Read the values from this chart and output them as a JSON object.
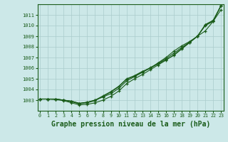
{
  "bg_color": "#cce8e8",
  "grid_color": "#aacccc",
  "line_color": "#1a5c1a",
  "xlabel": "Graphe pression niveau de la mer (hPa)",
  "xlabel_fontsize": 7.0,
  "xticks": [
    0,
    1,
    2,
    3,
    4,
    5,
    6,
    7,
    8,
    9,
    10,
    11,
    12,
    13,
    14,
    15,
    16,
    17,
    18,
    19,
    20,
    21,
    22,
    23
  ],
  "yticks": [
    1003,
    1004,
    1005,
    1006,
    1007,
    1008,
    1009,
    1010,
    1011
  ],
  "ylim": [
    1002.0,
    1012.0
  ],
  "xlim": [
    -0.3,
    23.3
  ],
  "series": [
    [
      1003.1,
      1003.1,
      1003.1,
      1003.0,
      1002.9,
      1002.7,
      1002.8,
      1003.0,
      1003.3,
      1003.6,
      1004.1,
      1004.8,
      1005.2,
      1005.6,
      1006.0,
      1006.4,
      1006.8,
      1007.2,
      1007.8,
      1008.4,
      1009.0,
      1009.5,
      1010.4,
      1011.5
    ],
    [
      1003.1,
      1003.1,
      1003.1,
      1003.0,
      1002.9,
      1002.7,
      1002.8,
      1003.0,
      1003.4,
      1003.8,
      1004.3,
      1005.0,
      1005.3,
      1005.7,
      1006.0,
      1006.5,
      1007.0,
      1007.6,
      1008.1,
      1008.5,
      1009.0,
      1010.1,
      1010.5,
      1011.9
    ],
    [
      1003.1,
      1003.1,
      1003.1,
      1003.0,
      1002.85,
      1002.65,
      1002.75,
      1002.95,
      1003.35,
      1003.75,
      1004.25,
      1004.95,
      1005.25,
      1005.65,
      1006.05,
      1006.45,
      1006.9,
      1007.4,
      1007.95,
      1008.45,
      1009.0,
      1010.05,
      1010.45,
      1011.85
    ],
    [
      1003.1,
      1003.1,
      1003.05,
      1002.95,
      1002.75,
      1002.55,
      1002.6,
      1002.75,
      1003.0,
      1003.35,
      1003.85,
      1004.55,
      1005.0,
      1005.4,
      1005.85,
      1006.3,
      1006.75,
      1007.25,
      1007.85,
      1008.4,
      1009.0,
      1010.0,
      1010.4,
      1011.9
    ]
  ]
}
